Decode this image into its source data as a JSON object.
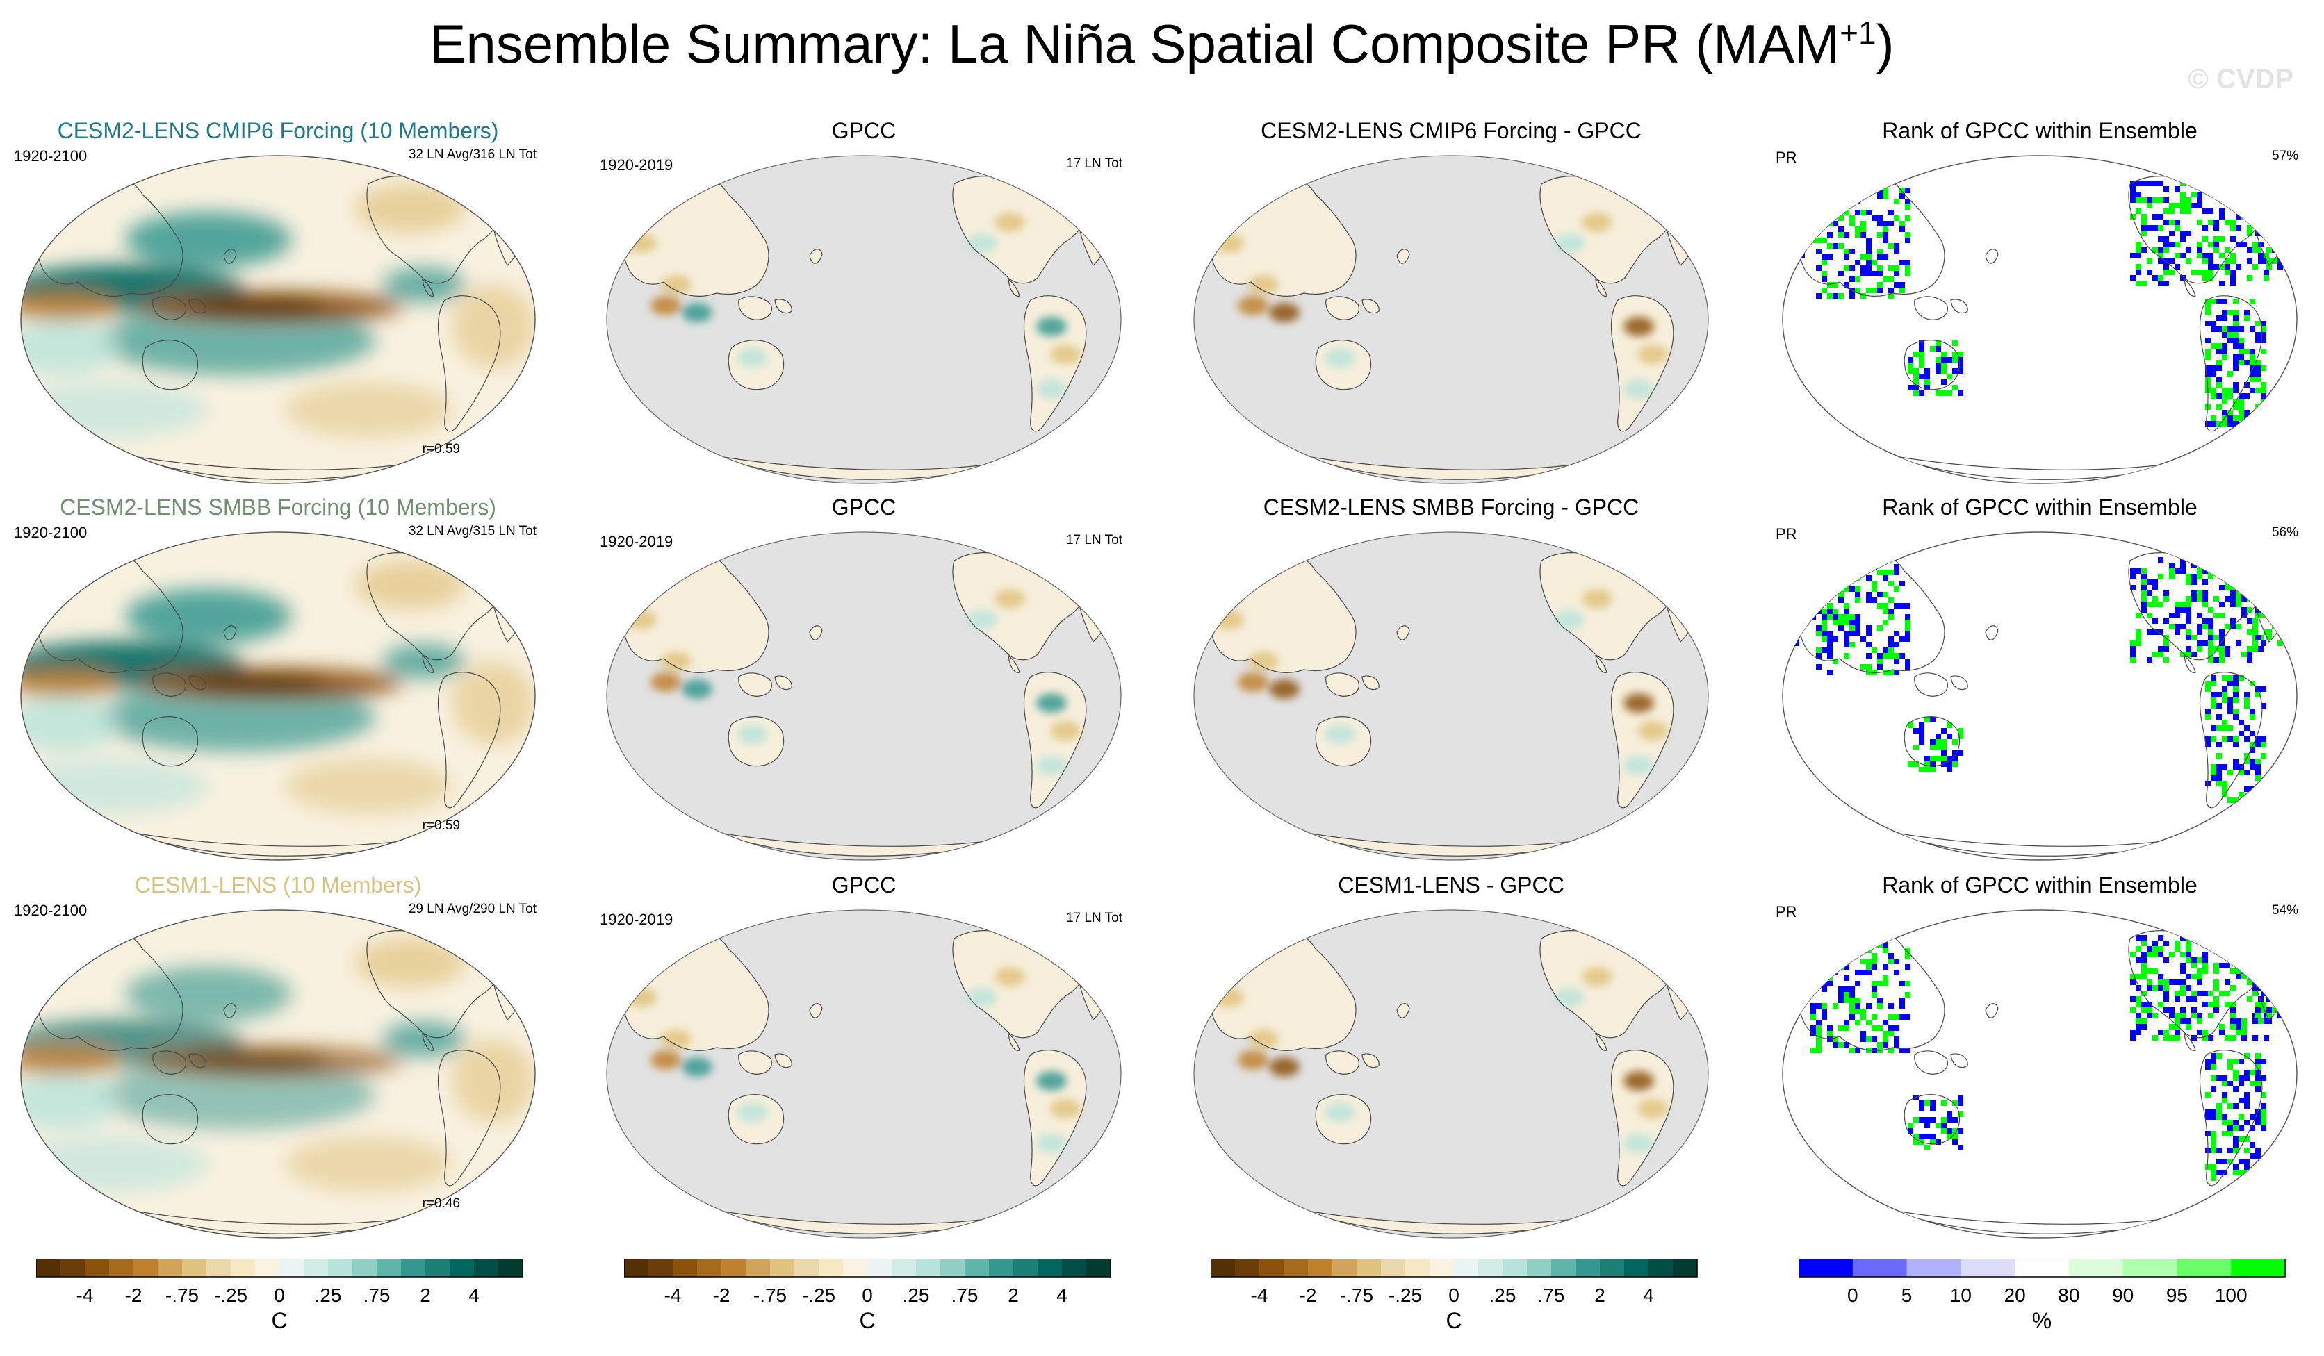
{
  "figure": {
    "title_main": "Ensemble Summary: La Niña Spatial Composite PR (MAM",
    "title_sup": "+1",
    "title_end": ")",
    "watermark": "© CVDP"
  },
  "rows": [
    {
      "model": {
        "title": "CESM2-LENS CMIP6 Forcing (10 Members)",
        "color": "#1f7a86",
        "years": "1920-2100",
        "count": "32 LN Avg/316 LN Tot",
        "r": "r=0.59"
      },
      "obs": {
        "title": "GPCC",
        "years": "1920-2019",
        "count": "17 LN Tot"
      },
      "diff": {
        "title": "CESM2-LENS CMIP6 Forcing - GPCC"
      },
      "rank": {
        "title": "Rank of GPCC within Ensemble",
        "var": "PR",
        "pct": "57%"
      }
    },
    {
      "model": {
        "title": "CESM2-LENS SMBB Forcing (10 Members)",
        "color": "#6f8f6f",
        "years": "1920-2100",
        "count": "32 LN Avg/315 LN Tot",
        "r": "r=0.59"
      },
      "obs": {
        "title": "GPCC",
        "years": "1920-2019",
        "count": "17 LN Tot"
      },
      "diff": {
        "title": "CESM2-LENS SMBB Forcing - GPCC"
      },
      "rank": {
        "title": "Rank of GPCC within Ensemble",
        "var": "PR",
        "pct": "56%"
      }
    },
    {
      "model": {
        "title": "CESM1-LENS (10 Members)",
        "color": "#d8c27e",
        "years": "1920-2100",
        "count": "29 LN Avg/290 LN Tot",
        "r": "r=0.46"
      },
      "obs": {
        "title": "GPCC",
        "years": "1920-2019",
        "count": "17 LN Tot"
      },
      "diff": {
        "title": "CESM1-LENS - GPCC"
      },
      "rank": {
        "title": "Rank of GPCC within Ensemble",
        "var": "PR",
        "pct": "54%"
      }
    }
  ],
  "colorbars": {
    "anomaly": {
      "labels": [
        "-4",
        "-2",
        "-.75",
        "-.25",
        "0",
        ".25",
        ".75",
        "2",
        "4"
      ],
      "unit": "C",
      "colors": [
        "#543005",
        "#6b3d0a",
        "#8c510a",
        "#a66a1f",
        "#bf812d",
        "#d2a35a",
        "#dfc27d",
        "#ecd9ab",
        "#f6e8c3",
        "#fbf3e2",
        "#eaf5f3",
        "#d2ede8",
        "#b8e3da",
        "#8fd0c3",
        "#5fb5a8",
        "#35978f",
        "#1d7f76",
        "#01665e",
        "#004f46",
        "#003c30"
      ]
    },
    "rank": {
      "labels": [
        "0",
        "5",
        "10",
        "20",
        "80",
        "90",
        "95",
        "100"
      ],
      "unit": "%",
      "colors": [
        "#0000ff",
        "#6a6aff",
        "#b0b0ff",
        "#dcdcfc",
        "#ffffff",
        "#dcfcdc",
        "#b0ffb0",
        "#6aff6a",
        "#00ff00"
      ]
    }
  },
  "chart_data": [
    {
      "type": "heatmap",
      "panel": "model",
      "row": 1,
      "title": "CESM2-LENS CMIP6 Forcing (10 Members)",
      "period": "1920-2100",
      "events": "32 LN Avg/316 LN Tot",
      "pattern_correlation": 0.59,
      "colorbar_levels": [
        -4,
        -2,
        -0.75,
        -0.25,
        0,
        0.25,
        0.75,
        2,
        4
      ],
      "unit": "C"
    },
    {
      "type": "heatmap",
      "panel": "observations",
      "row": 1,
      "title": "GPCC",
      "period": "1920-2019",
      "events": "17 LN Tot"
    },
    {
      "type": "heatmap",
      "panel": "difference",
      "row": 1,
      "title": "CESM2-LENS CMIP6 Forcing - GPCC"
    },
    {
      "type": "heatmap",
      "panel": "rank",
      "row": 1,
      "title": "Rank of GPCC within Ensemble",
      "variable": "PR",
      "rank_percent_label": "57%",
      "colorbar_levels": [
        0,
        5,
        10,
        20,
        80,
        90,
        95,
        100
      ],
      "unit": "%"
    },
    {
      "type": "heatmap",
      "panel": "model",
      "row": 2,
      "title": "CESM2-LENS SMBB Forcing (10 Members)",
      "period": "1920-2100",
      "events": "32 LN Avg/315 LN Tot",
      "pattern_correlation": 0.59
    },
    {
      "type": "heatmap",
      "panel": "observations",
      "row": 2,
      "title": "GPCC",
      "period": "1920-2019",
      "events": "17 LN Tot"
    },
    {
      "type": "heatmap",
      "panel": "difference",
      "row": 2,
      "title": "CESM2-LENS SMBB Forcing - GPCC"
    },
    {
      "type": "heatmap",
      "panel": "rank",
      "row": 2,
      "title": "Rank of GPCC within Ensemble",
      "variable": "PR",
      "rank_percent_label": "56%"
    },
    {
      "type": "heatmap",
      "panel": "model",
      "row": 3,
      "title": "CESM1-LENS (10 Members)",
      "period": "1920-2100",
      "events": "29 LN Avg/290 LN Tot",
      "pattern_correlation": 0.46
    },
    {
      "type": "heatmap",
      "panel": "observations",
      "row": 3,
      "title": "GPCC",
      "period": "1920-2019",
      "events": "17 LN Tot"
    },
    {
      "type": "heatmap",
      "panel": "difference",
      "row": 3,
      "title": "CESM1-LENS - GPCC"
    },
    {
      "type": "heatmap",
      "panel": "rank",
      "row": 3,
      "title": "Rank of GPCC within Ensemble",
      "variable": "PR",
      "rank_percent_label": "54%"
    }
  ]
}
